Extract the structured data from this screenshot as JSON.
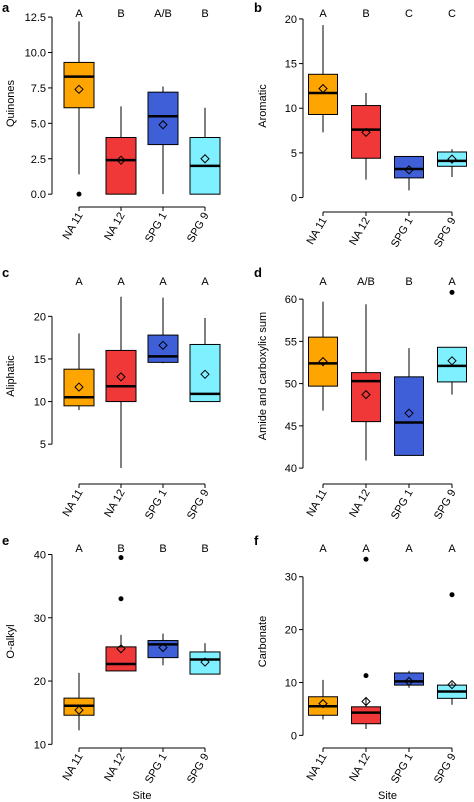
{
  "colors": {
    "NA 11": "#FFA500",
    "NA 12": "#F03838",
    "SPG 1": "#3E5FD8",
    "SPG 9": "#7FF0FF"
  },
  "chart_data": [
    {
      "letter": "a",
      "type": "box",
      "ylabel": "Quinones",
      "xlabel": "",
      "ylim": [
        -0.2,
        13
      ],
      "yticks": [
        "0.0",
        "2.5",
        "5.0",
        "7.5",
        "10.0",
        "12.5"
      ],
      "categories": [
        "NA 11",
        "NA 12",
        "SPG 1",
        "SPG 9"
      ],
      "groups": [
        "A",
        "B",
        "A/B",
        "B"
      ],
      "boxes": [
        {
          "whisker_low": 1.4,
          "q1": 6.1,
          "median": 8.3,
          "q3": 9.3,
          "whisker_high": 12.2,
          "mean": 7.4,
          "outliers": [
            0.0
          ]
        },
        {
          "whisker_low": 0.0,
          "q1": 0.0,
          "median": 2.4,
          "q3": 4.0,
          "whisker_high": 6.2,
          "mean": 2.4,
          "outliers": []
        },
        {
          "whisker_low": 0.0,
          "q1": 3.5,
          "median": 5.5,
          "q3": 7.2,
          "whisker_high": 7.6,
          "mean": 4.9,
          "outliers": []
        },
        {
          "whisker_low": 0.0,
          "q1": 0.0,
          "median": 2.0,
          "q3": 4.0,
          "whisker_high": 6.1,
          "mean": 2.5,
          "outliers": []
        }
      ]
    },
    {
      "letter": "b",
      "type": "box",
      "ylabel": "Aromatic",
      "xlabel": "",
      "ylim": [
        -0.5,
        21
      ],
      "yticks": [
        "0",
        "5",
        "10",
        "15",
        "20"
      ],
      "categories": [
        "NA 11",
        "NA 12",
        "SPG 1",
        "SPG 9"
      ],
      "groups": [
        "A",
        "B",
        "C",
        "C"
      ],
      "boxes": [
        {
          "whisker_low": 7.3,
          "q1": 9.3,
          "median": 11.7,
          "q3": 13.8,
          "whisker_high": 19.3,
          "mean": 12.2,
          "outliers": []
        },
        {
          "whisker_low": 2.0,
          "q1": 4.4,
          "median": 7.6,
          "q3": 10.3,
          "whisker_high": 11.7,
          "mean": 7.3,
          "outliers": []
        },
        {
          "whisker_low": 0.8,
          "q1": 2.2,
          "median": 3.2,
          "q3": 4.6,
          "whisker_high": 4.6,
          "mean": 3.1,
          "outliers": []
        },
        {
          "whisker_low": 2.3,
          "q1": 3.5,
          "median": 4.1,
          "q3": 5.1,
          "whisker_high": 5.4,
          "mean": 4.3,
          "outliers": []
        }
      ]
    },
    {
      "letter": "c",
      "type": "box",
      "ylabel": "Aliphatic",
      "xlabel": "",
      "ylim": [
        1.5,
        24.5
      ],
      "yticks": [
        "5",
        "10",
        "15",
        "20"
      ],
      "categories": [
        "NA 11",
        "NA 12",
        "SPG 1",
        "SPG 9"
      ],
      "groups": [
        "A",
        "A",
        "A",
        "A"
      ],
      "boxes": [
        {
          "whisker_low": 9.0,
          "q1": 9.5,
          "median": 10.5,
          "q3": 13.8,
          "whisker_high": 18.0,
          "mean": 11.7,
          "outliers": []
        },
        {
          "whisker_low": 2.2,
          "q1": 10.0,
          "median": 11.8,
          "q3": 16.0,
          "whisker_high": 22.3,
          "mean": 12.9,
          "outliers": []
        },
        {
          "whisker_low": 14.5,
          "q1": 14.6,
          "median": 15.3,
          "q3": 17.8,
          "whisker_high": 22.2,
          "mean": 16.6,
          "outliers": []
        },
        {
          "whisker_low": 10.0,
          "q1": 10.0,
          "median": 10.9,
          "q3": 16.7,
          "whisker_high": 19.8,
          "mean": 13.2,
          "outliers": []
        }
      ]
    },
    {
      "letter": "d",
      "type": "box",
      "ylabel": "Amide and carboxylic sum",
      "xlabel": "",
      "ylim": [
        39.3,
        62.5
      ],
      "yticks": [
        "40",
        "45",
        "50",
        "55",
        "60"
      ],
      "categories": [
        "NA 11",
        "NA 12",
        "SPG 1",
        "SPG 9"
      ],
      "groups": [
        "A",
        "A/B",
        "B",
        "A"
      ],
      "boxes": [
        {
          "whisker_low": 46.8,
          "q1": 49.7,
          "median": 52.4,
          "q3": 55.5,
          "whisker_high": 59.7,
          "mean": 52.6,
          "outliers": []
        },
        {
          "whisker_low": 40.9,
          "q1": 45.5,
          "median": 50.3,
          "q3": 51.3,
          "whisker_high": 59.4,
          "mean": 48.7,
          "outliers": []
        },
        {
          "whisker_low": 41.5,
          "q1": 41.5,
          "median": 45.4,
          "q3": 50.8,
          "whisker_high": 54.2,
          "mean": 46.5,
          "outliers": []
        },
        {
          "whisker_low": 48.7,
          "q1": 50.2,
          "median": 52.1,
          "q3": 54.3,
          "whisker_high": 54.3,
          "mean": 52.7,
          "outliers": [
            60.8
          ]
        }
      ]
    },
    {
      "letter": "e",
      "type": "box",
      "ylabel": "O-alkyl",
      "xlabel": "Site",
      "ylim": [
        11,
        41.5
      ],
      "yticks": [
        "10",
        "20",
        "30",
        "40"
      ],
      "categories": [
        "NA 11",
        "NA 12",
        "SPG 1",
        "SPG 9"
      ],
      "groups": [
        "A",
        "B",
        "B",
        "B"
      ],
      "boxes": [
        {
          "whisker_low": 12.2,
          "q1": 14.6,
          "median": 16.1,
          "q3": 17.3,
          "whisker_high": 21.3,
          "mean": 15.4,
          "outliers": []
        },
        {
          "whisker_low": 21.6,
          "q1": 21.6,
          "median": 22.7,
          "q3": 25.4,
          "whisker_high": 27.3,
          "mean": 25.1,
          "outliers": [
            33.0,
            39.5
          ]
        },
        {
          "whisker_low": 22.5,
          "q1": 23.7,
          "median": 25.8,
          "q3": 26.4,
          "whisker_high": 27.5,
          "mean": 25.3,
          "outliers": []
        },
        {
          "whisker_low": 21.1,
          "q1": 21.1,
          "median": 23.4,
          "q3": 24.6,
          "whisker_high": 26.0,
          "mean": 23.0,
          "outliers": []
        }
      ]
    },
    {
      "letter": "f",
      "type": "box",
      "ylabel": "Carbonate",
      "xlabel": "Site",
      "ylim": [
        -0.5,
        36
      ],
      "yticks": [
        "0",
        "10",
        "20",
        "30"
      ],
      "categories": [
        "NA 11",
        "NA 12",
        "SPG 1",
        "SPG 9"
      ],
      "groups": [
        "A",
        "A",
        "A",
        "A"
      ],
      "boxes": [
        {
          "whisker_low": 3.0,
          "q1": 3.8,
          "median": 5.5,
          "q3": 7.3,
          "whisker_high": 10.5,
          "mean": 6.0,
          "outliers": []
        },
        {
          "whisker_low": 1.2,
          "q1": 2.2,
          "median": 4.3,
          "q3": 5.4,
          "whisker_high": 7.0,
          "mean": 6.4,
          "outliers": [
            11.3,
            33.3
          ]
        },
        {
          "whisker_low": 9.0,
          "q1": 9.5,
          "median": 10.2,
          "q3": 11.8,
          "whisker_high": 12.2,
          "mean": 10.2,
          "outliers": []
        },
        {
          "whisker_low": 5.8,
          "q1": 7.0,
          "median": 8.3,
          "q3": 9.5,
          "whisker_high": 10.0,
          "mean": 9.6,
          "outliers": [
            26.6
          ]
        }
      ]
    }
  ]
}
